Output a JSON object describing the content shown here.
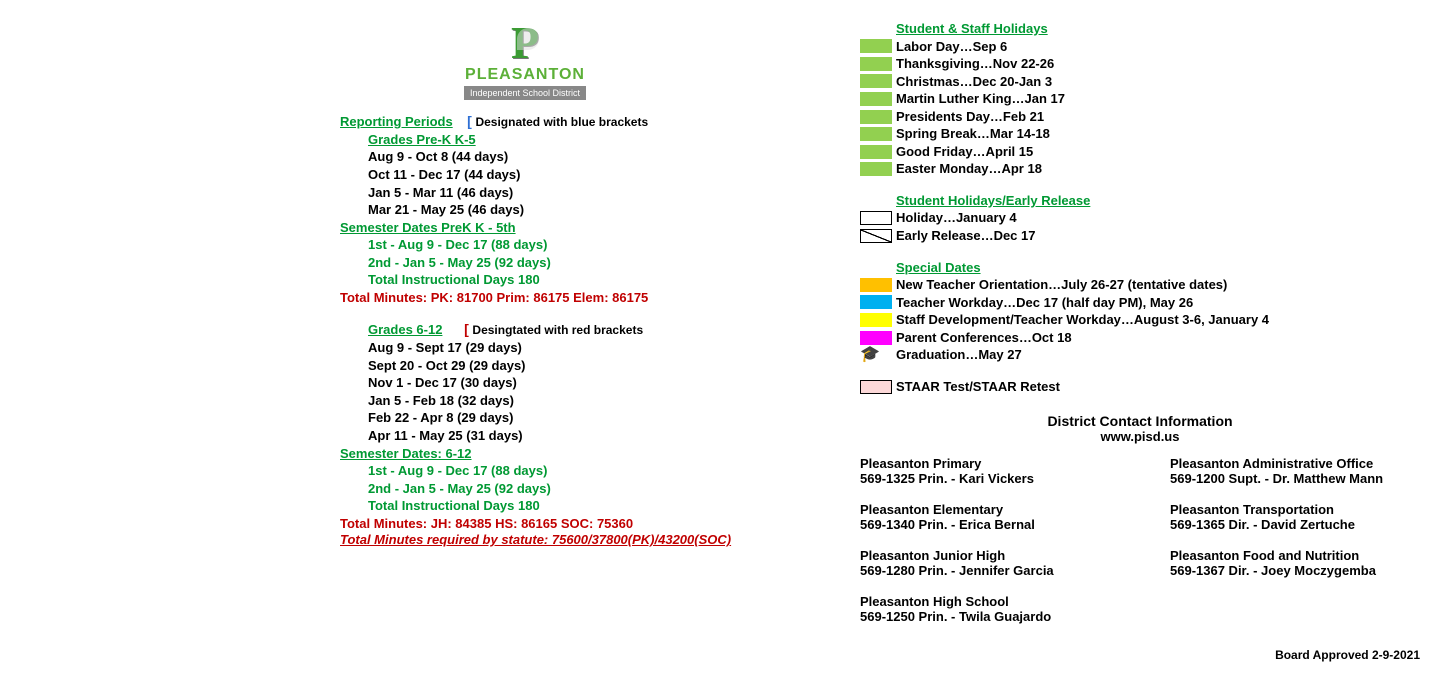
{
  "logo": {
    "letter": "P",
    "name": "PLEASANTON",
    "sub": "Independent School District"
  },
  "reporting_periods_label": "Reporting Periods",
  "blue_hint": "Designated with blue brackets",
  "grades_k5_label": "Grades Pre-K K-5",
  "grades_k5": [
    "Aug 9 - Oct 8 (44 days)",
    "Oct 11 - Dec 17 (44 days)",
    "Jan 5 - Mar 11 (46 days)",
    "Mar 21 - May 25 (46 days)"
  ],
  "sem_k5_label": "Semester Dates PreK K - 5th",
  "sem_k5": [
    "1st - Aug 9 - Dec 17 (88 days)",
    "2nd - Jan 5 - May 25 (92 days)",
    "Total Instructional Days 180"
  ],
  "total_min_k5": "Total Minutes:  PK: 81700  Prim: 86175  Elem: 86175",
  "grades_612_label": "Grades 6-12",
  "red_hint": "Desingtated with red brackets",
  "grades_612": [
    "Aug 9 - Sept 17 (29 days)",
    "Sept 20 - Oct 29 (29 days)",
    "Nov 1 - Dec 17 (30 days)",
    "Jan 5 - Feb 18 (32 days)",
    "Feb 22 - Apr 8 (29 days)",
    "Apr 11 - May 25 (31 days)"
  ],
  "sem_612_label": "Semester Dates: 6-12",
  "sem_612": [
    "1st - Aug 9 - Dec 17 (88 days)",
    "2nd - Jan 5 - May 25 (92 days)",
    "Total Instructional Days 180"
  ],
  "total_min_612": "Total Minutes:  JH: 84385   HS: 86165   SOC: 75360",
  "statute": "Total Minutes required by statute: 75600/37800(PK)/43200(SOC)",
  "holidays_label": "Student & Staff Holidays",
  "holidays_color": "#92d050",
  "holidays": [
    "Labor Day…Sep 6",
    "Thanksgiving…Nov 22-26",
    "Christmas…Dec 20-Jan 3",
    "Martin Luther King…Jan 17",
    "Presidents Day…Feb 21",
    "Spring Break…Mar 14-18",
    "Good Friday…April 15",
    "Easter Monday…Apr 18"
  ],
  "early_label": "Student Holidays/Early Release",
  "early": [
    {
      "style": "border",
      "text": "Holiday…January 4"
    },
    {
      "style": "diag",
      "text": "Early Release…Dec 17"
    }
  ],
  "special_label": "Special Dates",
  "special": [
    {
      "color": "#ffc000",
      "text": "New Teacher Orientation…July 26-27 (tentative dates)"
    },
    {
      "color": "#00b0f0",
      "text": "Teacher Workday…Dec 17 (half day PM), May 26"
    },
    {
      "color": "#ffff00",
      "text": "Staff Development/Teacher Workday…August 3-6, January 4"
    },
    {
      "color": "#ff00ff",
      "text": "Parent Conferences…Oct 18"
    },
    {
      "icon": "grad",
      "text": "Graduation…May 27"
    }
  ],
  "staar": {
    "color": "#fcd8d8",
    "text": "STAAR Test/STAAR Retest"
  },
  "contact_heading": "District Contact Information",
  "contact_url": "www.pisd.us",
  "contacts_left": [
    {
      "name": "Pleasanton Primary",
      "info": "569-1325  Prin. - Kari Vickers"
    },
    {
      "name": "Pleasanton Elementary",
      "info": "569-1340  Prin. - Erica Bernal"
    },
    {
      "name": "Pleasanton Junior High",
      "info": "569-1280  Prin. -  Jennifer Garcia"
    },
    {
      "name": "Pleasanton High School",
      "info": "569-1250  Prin. -  Twila Guajardo"
    }
  ],
  "contacts_right": [
    {
      "name": "Pleasanton Administrative Office",
      "info": "569-1200   Supt. -  Dr. Matthew Mann"
    },
    {
      "name": "Pleasanton Transportation",
      "info": "569-1365  Dir. -  David Zertuche"
    },
    {
      "name": "Pleasanton Food and Nutrition",
      "info": "569-1367  Dir. -  Joey Moczygemba"
    }
  ],
  "board_approved": "Board Approved 2-9-2021"
}
